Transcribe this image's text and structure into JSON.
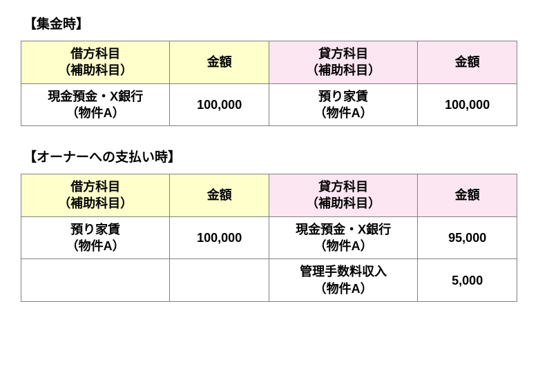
{
  "sections": [
    {
      "title": "【集金時】",
      "headers": {
        "debit_account": "借方科目\n（補助科目）",
        "debit_amount": "金額",
        "credit_account": "貸方科目\n（補助科目）",
        "credit_amount": "金額"
      },
      "rows": [
        {
          "debit_account": "現金預金・X銀行\n（物件A）",
          "debit_amount": "100,000",
          "credit_account": "預り家賃\n（物件A）",
          "credit_amount": "100,000"
        }
      ]
    },
    {
      "title": "【オーナーへの支払い時】",
      "headers": {
        "debit_account": "借方科目\n（補助科目）",
        "debit_amount": "金額",
        "credit_account": "貸方科目\n（補助科目）",
        "credit_amount": "金額"
      },
      "rows": [
        {
          "debit_account": "預り家賃\n（物件A）",
          "debit_amount": "100,000",
          "credit_account": "現金預金・X銀行\n（物件A）",
          "credit_amount": "95,000"
        },
        {
          "debit_account": "",
          "debit_amount": "",
          "credit_account": "管理手数料収入\n（物件A）",
          "credit_amount": "5,000"
        }
      ]
    }
  ],
  "styling": {
    "debit_header_bg": "#ffffcc",
    "credit_header_bg": "#fce6f2",
    "border_color": "#808080",
    "text_color": "#000000",
    "background_color": "#ffffff",
    "title_fontsize": 19,
    "cell_fontsize": 18,
    "col_widths_percent": [
      30,
      20,
      30,
      20
    ]
  }
}
